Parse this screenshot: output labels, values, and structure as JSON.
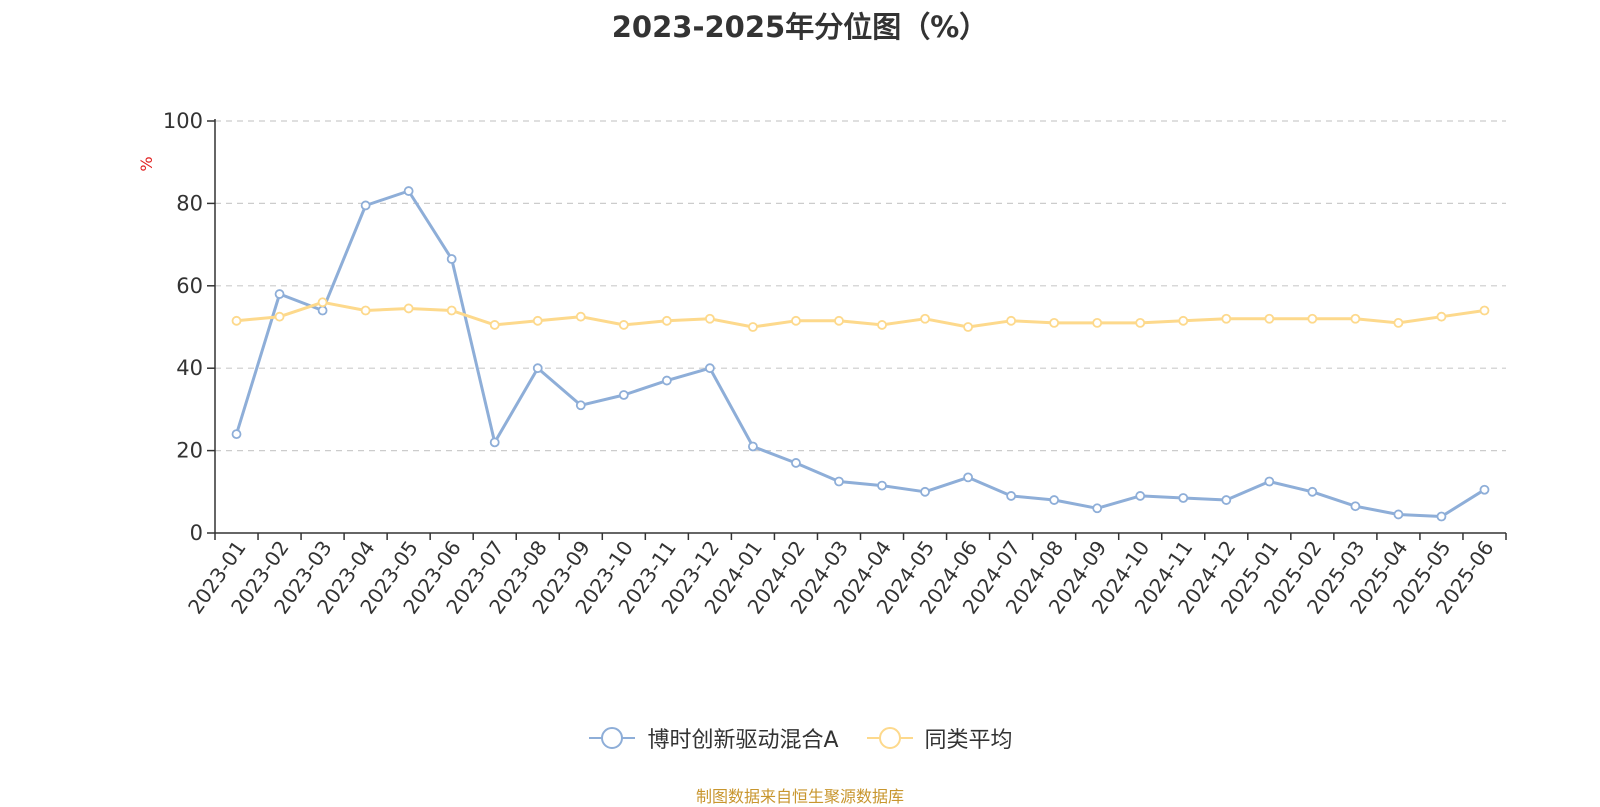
{
  "chart_data": {
    "type": "line",
    "title": "2023-2025年分位图（%）",
    "ylabel": "%",
    "xlabel": "",
    "ylim": [
      0,
      100
    ],
    "yticks": [
      0,
      20,
      40,
      60,
      80,
      100
    ],
    "grid": true,
    "legend_position": "bottom",
    "categories": [
      "2023-01",
      "2023-02",
      "2023-03",
      "2023-04",
      "2023-05",
      "2023-06",
      "2023-07",
      "2023-08",
      "2023-09",
      "2023-10",
      "2023-11",
      "2023-12",
      "2024-01",
      "2024-02",
      "2024-03",
      "2024-04",
      "2024-05",
      "2024-06",
      "2024-07",
      "2024-08",
      "2024-09",
      "2024-10",
      "2024-11",
      "2024-12",
      "2025-01",
      "2025-02",
      "2025-03",
      "2025-04",
      "2025-05",
      "2025-06"
    ],
    "series": [
      {
        "name": "博时创新驱动混合A",
        "color": "#8eaed8",
        "values": [
          24.0,
          58.0,
          54.0,
          79.5,
          83.0,
          66.5,
          22.0,
          40.0,
          31.0,
          33.5,
          37.0,
          40.0,
          21.0,
          17.0,
          12.5,
          11.5,
          10.0,
          13.5,
          9.0,
          8.0,
          6.0,
          9.0,
          8.5,
          8.0,
          12.5,
          10.0,
          6.5,
          4.5,
          4.0,
          10.5
        ]
      },
      {
        "name": "同类平均",
        "color": "#fdd98c",
        "values": [
          51.5,
          52.5,
          56.0,
          54.0,
          54.5,
          54.0,
          50.5,
          51.5,
          52.5,
          50.5,
          51.5,
          52.0,
          50.0,
          51.5,
          51.5,
          50.5,
          52.0,
          50.0,
          51.5,
          51.0,
          51.0,
          51.0,
          51.5,
          52.0,
          52.0,
          52.0,
          52.0,
          51.0,
          52.5,
          54.0
        ]
      }
    ]
  },
  "legend": {
    "items": [
      "博时创新驱动混合A",
      "同类平均"
    ]
  },
  "source_note": "制图数据来自恒生聚源数据库"
}
